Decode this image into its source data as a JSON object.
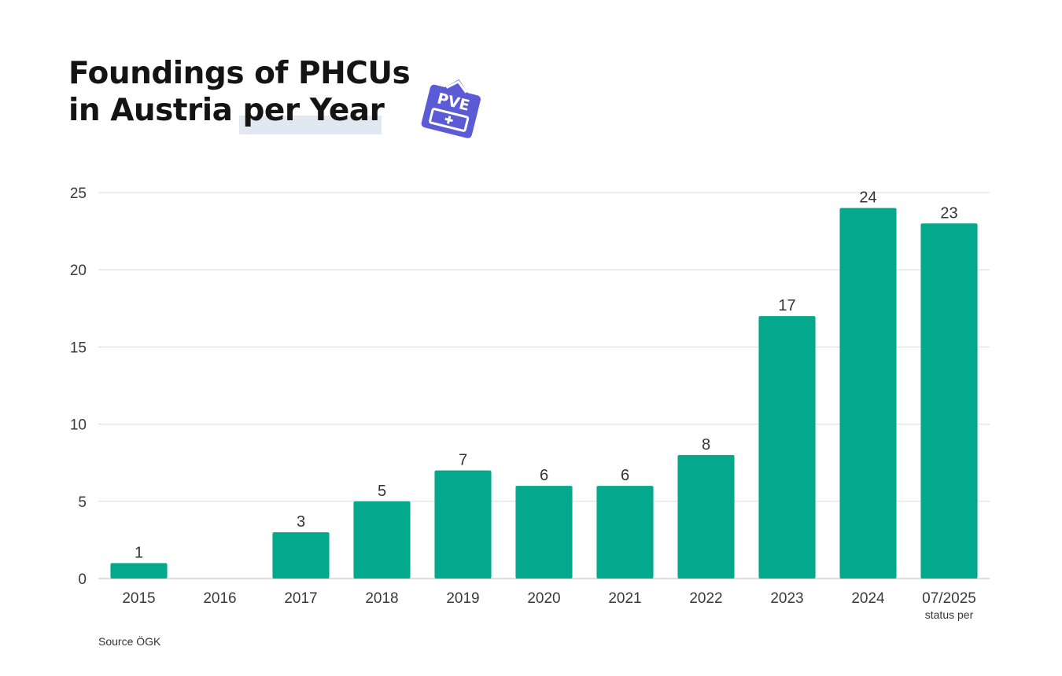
{
  "chart_data": {
    "type": "bar",
    "title": "Foundings of PHCUs in Austria per Year",
    "title_lines": [
      "Foundings of PHCUs",
      "in Austria per Year"
    ],
    "categories": [
      "2015",
      "2016",
      "2017",
      "2018",
      "2019",
      "2020",
      "2021",
      "2022",
      "2023",
      "2024",
      "07/2025"
    ],
    "values": [
      1,
      0,
      3,
      5,
      7,
      6,
      6,
      8,
      17,
      24,
      23
    ],
    "data_labels": [
      "1",
      "",
      "3",
      "5",
      "7",
      "6",
      "6",
      "8",
      "17",
      "24",
      "23"
    ],
    "ylim": [
      0,
      25
    ],
    "yticks": [
      0,
      5,
      10,
      15,
      20,
      25
    ],
    "xlabel": "",
    "ylabel": "",
    "grid": true,
    "bar_color": "#04a88c",
    "category_note": "status per",
    "source": "Source ÖGK"
  },
  "logo": {
    "text": "PVE",
    "color": "#5b5bd6"
  }
}
